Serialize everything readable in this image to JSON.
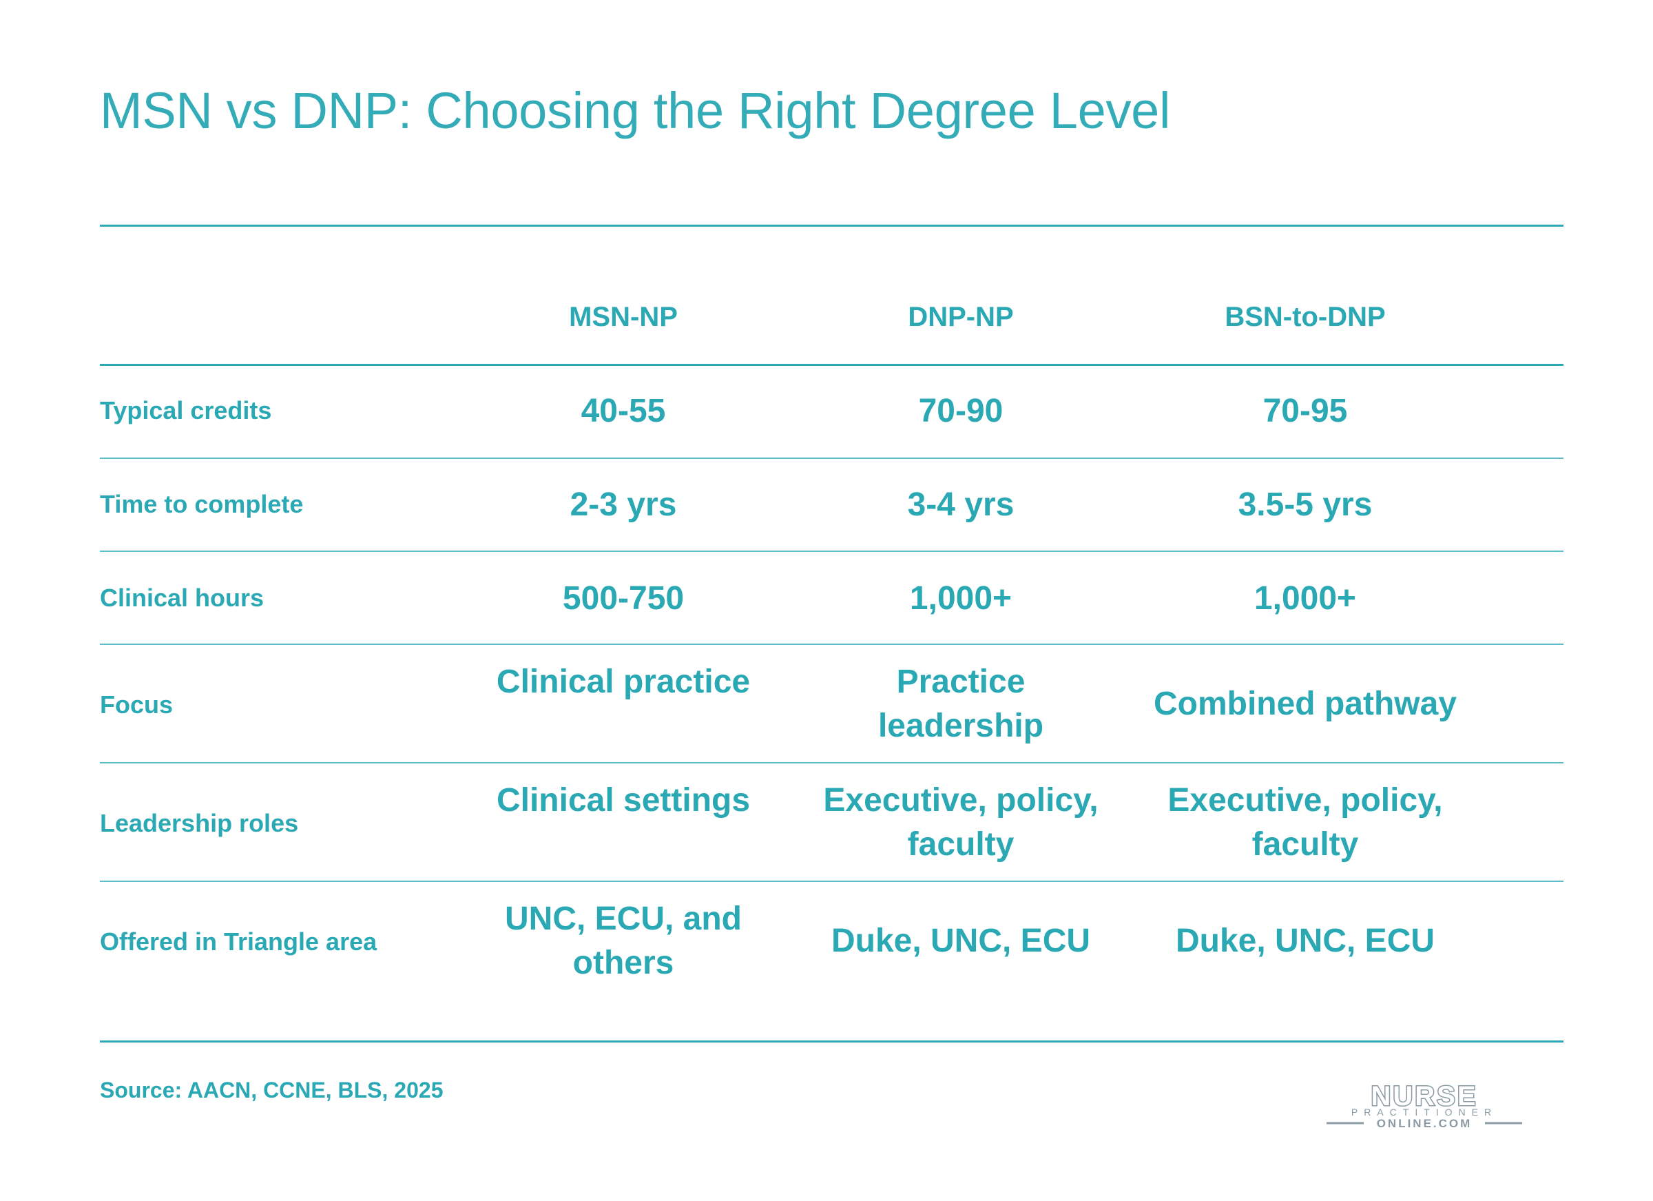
{
  "title": "MSN vs DNP: Choosing the Right Degree Level",
  "columns": [
    "MSN-NP",
    "DNP-NP",
    "BSN-to-DNP"
  ],
  "rows": [
    {
      "label": "Typical credits",
      "values": [
        "40-55",
        "70-90",
        "70-95"
      ]
    },
    {
      "label": "Time to complete",
      "values": [
        "2-3 yrs",
        "3-4 yrs",
        "3.5-5 yrs"
      ]
    },
    {
      "label": "Clinical hours",
      "values": [
        "500-750",
        "1,000+",
        "1,000+"
      ]
    },
    {
      "label": "Focus",
      "values": [
        "Clinical practice",
        "Practice leadership",
        "Combined pathway"
      ]
    },
    {
      "label": "Leadership roles",
      "values": [
        "Clinical settings",
        "Executive, policy, faculty",
        "Executive, policy, faculty"
      ]
    },
    {
      "label": "Offered in Triangle area",
      "values": [
        "UNC, ECU, and others",
        "Duke, UNC, ECU",
        "Duke, UNC, ECU"
      ]
    }
  ],
  "source": "Source: AACN, CCNE, BLS, 2025",
  "logo": {
    "line1": "NURSE",
    "line2": "PRACTITIONER",
    "line3": "ONLINE.COM",
    "color": "#8a9ba3"
  },
  "accent_color": "#2aa8b4"
}
